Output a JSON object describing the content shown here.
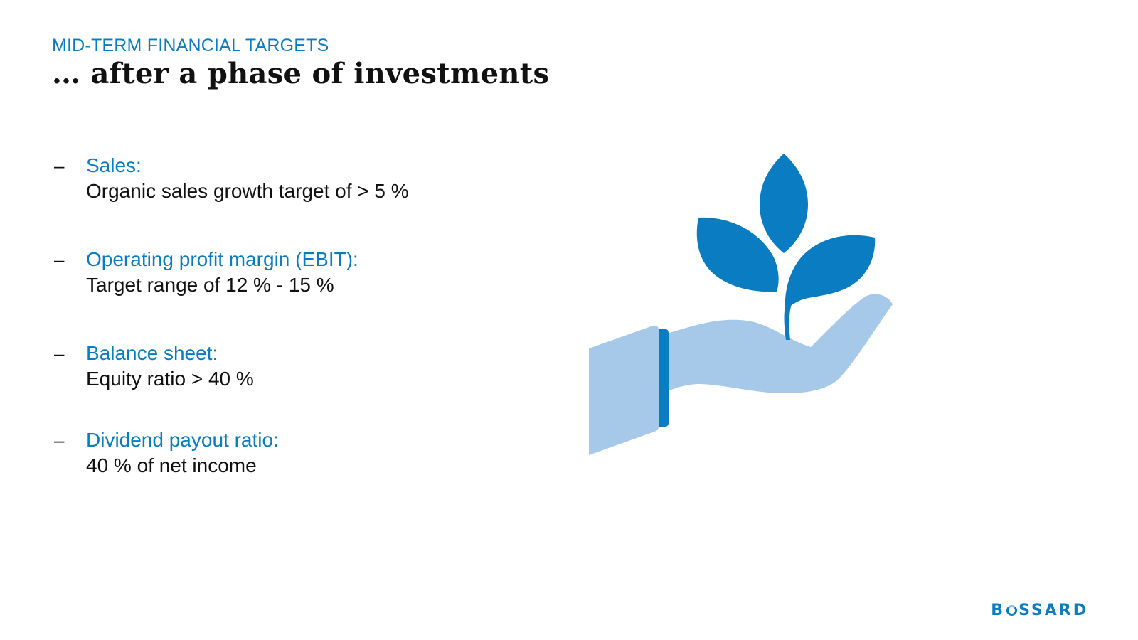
{
  "header": {
    "kicker": "MID-TERM FINANCIAL TARGETS",
    "title": "… after a phase of investments"
  },
  "targets": [
    {
      "dash": "–",
      "label": "Sales:",
      "value": "Organic sales growth target of > 5 %"
    },
    {
      "dash": "–",
      "label": "Operating profit margin (EBIT):",
      "value": "Target range of 12 % - 15 %"
    },
    {
      "dash": "–",
      "label": "Balance sheet:",
      "value": "Equity ratio > 40 %"
    },
    {
      "dash": "–",
      "label": "Dividend payout ratio:",
      "value": "40 % of net income"
    }
  ],
  "illustration": {
    "icon": "hand-holding-plant-icon",
    "leaf_color": "#0a7cc1",
    "hand_color": "#a6c9ea"
  },
  "logo": {
    "text_before": "B",
    "text_after": "SSARD",
    "brand_color": "#0a7cc1"
  }
}
